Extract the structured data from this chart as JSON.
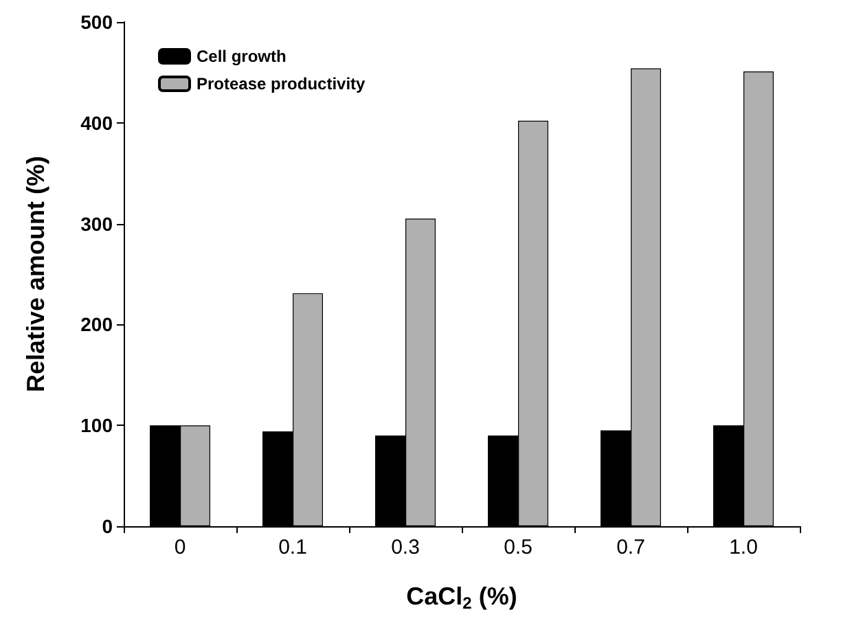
{
  "chart_data": {
    "type": "bar",
    "xlabel": "CaCl$_{2}$ (%)",
    "ylabel": "Relative amount (%)",
    "categories": [
      "0",
      "0.1",
      "0.3",
      "0.5",
      "0.7",
      "1.0"
    ],
    "series": [
      {
        "name": "Cell growth",
        "color": "#000000",
        "values": [
          100,
          94,
          90,
          90,
          95,
          100
        ]
      },
      {
        "name": "Protease productivity",
        "color": "#b0b0b0",
        "values": [
          100,
          231,
          305,
          402,
          454,
          451
        ]
      }
    ],
    "ylim": [
      0,
      500
    ],
    "yticks": [
      0,
      100,
      200,
      300,
      400,
      500
    ],
    "grid": false,
    "legend": "top left"
  }
}
